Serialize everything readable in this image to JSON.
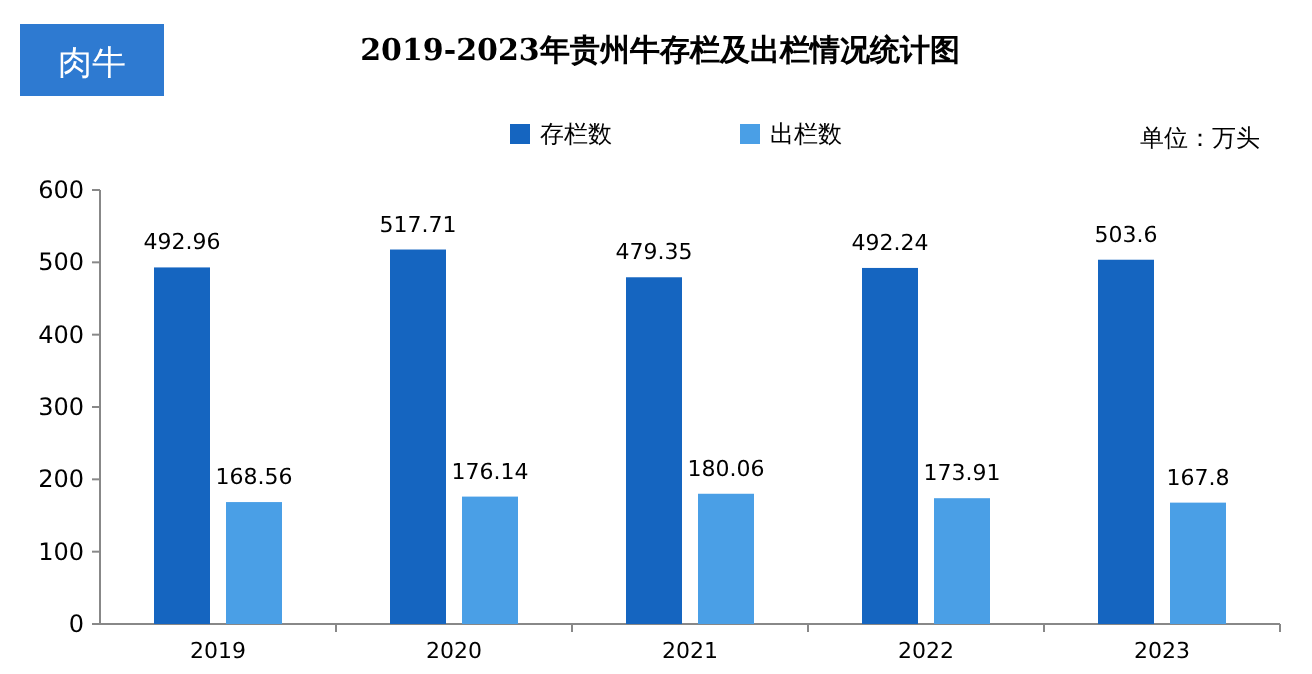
{
  "chart_data": {
    "type": "bar",
    "title": "2019-2023年贵州牛存栏及出栏情况统计图",
    "categories": [
      "2019",
      "2020",
      "2021",
      "2022",
      "2023"
    ],
    "series": [
      {
        "name": "存栏数",
        "color": "#1565c0",
        "values": [
          492.96,
          517.71,
          479.35,
          492.24,
          503.6
        ]
      },
      {
        "name": "出栏数",
        "color": "#4a9fe6",
        "values": [
          168.56,
          176.14,
          180.06,
          173.91,
          167.8
        ]
      }
    ],
    "ylim": [
      0,
      600
    ],
    "yticks": [
      0,
      100,
      200,
      300,
      400,
      500,
      600
    ],
    "data_labels": true,
    "legend": "top",
    "grid": false,
    "annotations": [
      "单位：万头",
      "肉牛"
    ]
  }
}
